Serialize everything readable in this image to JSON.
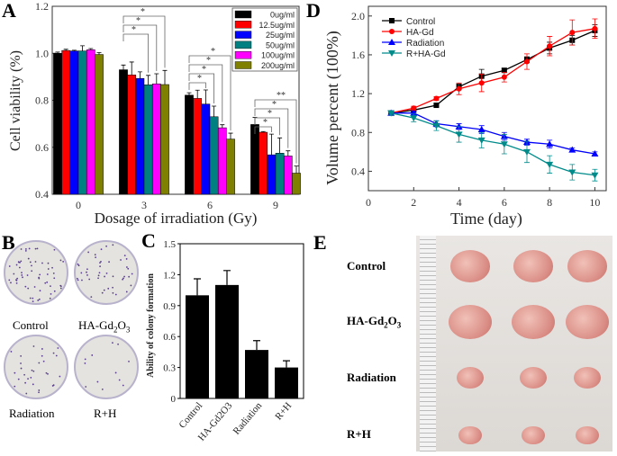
{
  "panel_labels": {
    "a": "A",
    "b": "B",
    "c": "C",
    "d": "D",
    "e": "E"
  },
  "panel_b": {
    "labels": [
      "Control",
      "HA-Gd2O3",
      "Radiation",
      "R+H"
    ]
  },
  "panel_e": {
    "labels": [
      "Control",
      "HA-Gd2O3",
      "Radiation",
      "R+H"
    ]
  },
  "chart_data": [
    {
      "id": "A",
      "type": "bar",
      "xlabel": "Dosage of irradiation (Gy)",
      "ylabel": "Cell viability (%)",
      "categories": [
        "0",
        "3",
        "6",
        "9"
      ],
      "ylim": [
        0.4,
        1.2
      ],
      "yticks": [
        "0.4",
        "0.6",
        "0.8",
        "1.0",
        "1.2"
      ],
      "legend": "top-right",
      "series": [
        {
          "name": "0ug/ml",
          "color": "#000000",
          "values": [
            1.0,
            0.93,
            0.822,
            0.697
          ],
          "errors": [
            0.005,
            0.02,
            0.01,
            0.03
          ]
        },
        {
          "name": "12.5ug/ml",
          "color": "#ff0000",
          "values": [
            1.012,
            0.908,
            0.808,
            0.664
          ],
          "errors": [
            0.005,
            0.055,
            0.035,
            0.003
          ]
        },
        {
          "name": "25ug/ml",
          "color": "#0000ff",
          "values": [
            1.01,
            0.893,
            0.784,
            0.568
          ],
          "errors": [
            0.003,
            0.028,
            0.06,
            0.088
          ]
        },
        {
          "name": "50ug/ml",
          "color": "#008080",
          "values": [
            1.01,
            0.866,
            0.73,
            0.575
          ],
          "errors": [
            0.022,
            0.04,
            0.045,
            0.065
          ]
        },
        {
          "name": "100ug/ml",
          "color": "#ff00ff",
          "values": [
            1.015,
            0.87,
            0.683,
            0.563
          ],
          "errors": [
            0.005,
            0.043,
            0.013,
            0.022
          ]
        },
        {
          "name": "200ug/ml",
          "color": "#808000",
          "values": [
            0.995,
            0.867,
            0.635,
            0.49
          ],
          "errors": [
            0.008,
            0.06,
            0.025,
            0.03
          ]
        }
      ],
      "annotations": [
        {
          "category": "3",
          "to_series": [
            3,
            4,
            5
          ],
          "labels": [
            "*",
            "*",
            "*"
          ]
        },
        {
          "category": "6",
          "to_series": [
            2,
            3,
            4,
            5
          ],
          "labels": [
            "*",
            "*",
            "*",
            "*"
          ]
        },
        {
          "category": "9",
          "to_series": [
            2,
            3,
            4,
            5
          ],
          "labels": [
            "*",
            "*",
            "*",
            "**"
          ]
        }
      ]
    },
    {
      "id": "C",
      "type": "bar",
      "ylabel": "Ability of colony formation",
      "categories": [
        "Control",
        "HA-Gd2O3",
        "Radiation",
        "R+H"
      ],
      "values": [
        1.0,
        1.1,
        0.47,
        0.3
      ],
      "errors": [
        0.16,
        0.14,
        0.09,
        0.065
      ],
      "ylim": [
        0,
        1.5
      ],
      "yticks": [
        "0",
        "0.3",
        "0.6",
        "0.9",
        "1.2",
        "1.5"
      ]
    },
    {
      "id": "D",
      "type": "line",
      "xlabel": "Time (day)",
      "ylabel": "Volume percent (100%)",
      "xlim": [
        0,
        10.5
      ],
      "ylim": [
        0.2,
        2.1
      ],
      "xticks": [
        "0",
        "2",
        "4",
        "6",
        "8",
        "10"
      ],
      "yticks": [
        "0.4",
        "0.8",
        "1.2",
        "1.6",
        "2.0"
      ],
      "legend": "top-left",
      "x": [
        1,
        2,
        3,
        4,
        5,
        6,
        7,
        8,
        9,
        10
      ],
      "series": [
        {
          "name": "Control",
          "color": "#000000",
          "marker": "square",
          "values": [
            1.0,
            1.03,
            1.08,
            1.27,
            1.38,
            1.44,
            1.55,
            1.67,
            1.75,
            1.85
          ],
          "errors": [
            0.02,
            0.02,
            0.01,
            0.03,
            0.07,
            0.02,
            0.03,
            0.06,
            0.05,
            0.06
          ]
        },
        {
          "name": "HA-Gd",
          "color": "#ff0000",
          "marker": "circle",
          "values": [
            1.0,
            1.05,
            1.15,
            1.25,
            1.31,
            1.37,
            1.53,
            1.69,
            1.83,
            1.87
          ],
          "errors": [
            0.02,
            0.02,
            0.02,
            0.06,
            0.09,
            0.05,
            0.08,
            0.1,
            0.13,
            0.1
          ]
        },
        {
          "name": "Radiation",
          "color": "#0000ff",
          "marker": "triangle-up",
          "values": [
            1.0,
            1.0,
            0.89,
            0.86,
            0.83,
            0.76,
            0.7,
            0.68,
            0.62,
            0.58
          ],
          "errors": [
            0.02,
            0.02,
            0.03,
            0.03,
            0.04,
            0.04,
            0.03,
            0.04,
            0.02,
            0.02
          ]
        },
        {
          "name": "R+HA-Gd",
          "color": "#008b8b",
          "marker": "triangle-down",
          "values": [
            1.0,
            0.95,
            0.87,
            0.78,
            0.72,
            0.68,
            0.6,
            0.47,
            0.39,
            0.36
          ],
          "errors": [
            0.02,
            0.04,
            0.05,
            0.08,
            0.08,
            0.1,
            0.11,
            0.09,
            0.08,
            0.06
          ]
        }
      ]
    }
  ]
}
